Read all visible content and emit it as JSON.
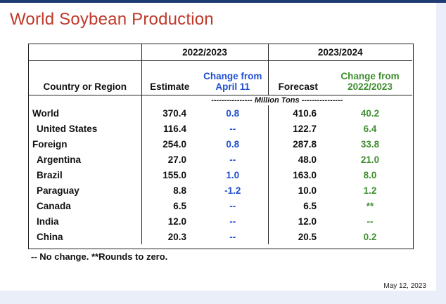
{
  "title": "World Soybean Production",
  "table": {
    "group_headers": [
      "2022/2023",
      "2023/2024"
    ],
    "col_headers": {
      "country": "Country or Region",
      "estimate": "Estimate",
      "change_april_line1": "Change from",
      "change_april_line2": "April 11",
      "forecast": "Forecast",
      "change_2022_line1": "Change from",
      "change_2022_line2": "2022/2023"
    },
    "unit_label": "---------------- Million Tons ----------------",
    "rows": [
      {
        "country": "World",
        "estimate": "370.4",
        "change_april": "0.8",
        "forecast": "410.6",
        "change_2022": "40.2",
        "sub": false
      },
      {
        "country": "United States",
        "estimate": "116.4",
        "change_april": "--",
        "forecast": "122.7",
        "change_2022": "6.4",
        "sub": true
      },
      {
        "country": "Foreign",
        "estimate": "254.0",
        "change_april": "0.8",
        "forecast": "287.8",
        "change_2022": "33.8",
        "sub": false
      },
      {
        "country": "Argentina",
        "estimate": "27.0",
        "change_april": "--",
        "forecast": "48.0",
        "change_2022": "21.0",
        "sub": true
      },
      {
        "country": "Brazil",
        "estimate": "155.0",
        "change_april": "1.0",
        "forecast": "163.0",
        "change_2022": "8.0",
        "sub": true
      },
      {
        "country": "Paraguay",
        "estimate": "8.8",
        "change_april": "-1.2",
        "forecast": "10.0",
        "change_2022": "1.2",
        "sub": true
      },
      {
        "country": "Canada",
        "estimate": "6.5",
        "change_april": "--",
        "forecast": "6.5",
        "change_2022": "**",
        "sub": true
      },
      {
        "country": "India",
        "estimate": "12.0",
        "change_april": "--",
        "forecast": "12.0",
        "change_2022": "--",
        "sub": true
      },
      {
        "country": "China",
        "estimate": "20.3",
        "change_april": "--",
        "forecast": "20.5",
        "change_2022": "0.2",
        "sub": true
      }
    ]
  },
  "footnote": "-- No change.  **Rounds to zero.",
  "date": "May 12, 2023",
  "colors": {
    "title": "#c0392b",
    "change_april": "#1f4fd1",
    "change_2022": "#3f8f2f"
  }
}
